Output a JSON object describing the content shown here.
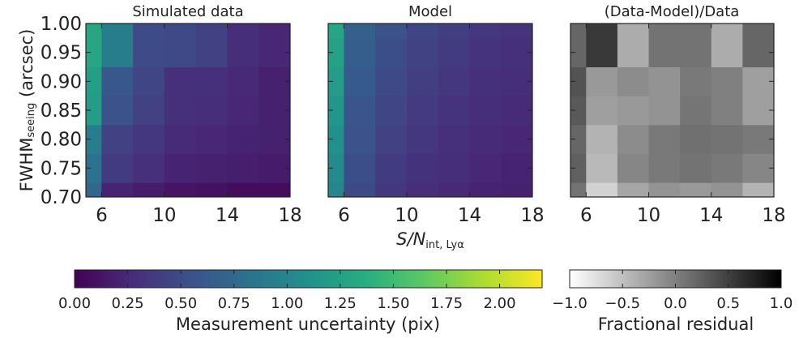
{
  "chart_data": [
    {
      "type": "heatmap",
      "title": "Simulated data",
      "xlabel": "S/N",
      "xlabel_sub": "int, Lyα",
      "ylabel": "FWHM",
      "ylabel_sub": "seeing",
      "ylabel_unit": "(arcsec)",
      "x_edges": [
        5,
        6,
        8,
        10,
        12,
        14,
        16,
        18
      ],
      "y_edges": [
        0.7,
        0.725,
        0.775,
        0.825,
        0.875,
        0.925,
        0.975,
        1.0
      ],
      "x_ticks": [
        6,
        10,
        14,
        18
      ],
      "y_ticks": [
        0.7,
        0.75,
        0.8,
        0.85,
        0.9,
        0.95,
        1.0
      ],
      "y_tick_labels": [
        "0.70",
        "0.75",
        "0.80",
        "0.85",
        "0.90",
        "0.95",
        "1.00"
      ],
      "xlim": [
        5,
        18
      ],
      "ylim": [
        0.7,
        1.0
      ],
      "colormap": "viridis",
      "vlim": [
        0,
        2.2
      ],
      "values": [
        [
          0.72,
          0.22,
          0.17,
          0.12,
          0.1,
          0.07,
          0.07
        ],
        [
          0.82,
          0.38,
          0.3,
          0.22,
          0.2,
          0.18,
          0.16
        ],
        [
          0.92,
          0.42,
          0.35,
          0.26,
          0.24,
          0.21,
          0.2
        ],
        [
          1.2,
          0.55,
          0.42,
          0.3,
          0.28,
          0.24,
          0.2
        ],
        [
          1.22,
          0.6,
          0.45,
          0.3,
          0.3,
          0.25,
          0.2
        ],
        [
          1.3,
          0.92,
          0.5,
          0.48,
          0.42,
          0.28,
          0.24
        ],
        [
          1.3,
          0.92,
          0.5,
          0.48,
          0.42,
          0.28,
          0.24
        ]
      ]
    },
    {
      "type": "heatmap",
      "title": "Model",
      "xlabel": "S/N",
      "xlabel_sub": "int, Lyα",
      "x_edges": [
        5,
        6,
        8,
        10,
        12,
        14,
        16,
        18
      ],
      "y_edges": [
        0.7,
        0.725,
        0.775,
        0.825,
        0.875,
        0.925,
        0.975,
        1.0
      ],
      "x_ticks": [
        6,
        10,
        14,
        18
      ],
      "xlim": [
        5,
        18
      ],
      "ylim": [
        0.7,
        1.0
      ],
      "colormap": "viridis",
      "vlim": [
        0,
        2.2
      ],
      "values": [
        [
          1.0,
          0.48,
          0.35,
          0.28,
          0.25,
          0.22,
          0.2
        ],
        [
          1.05,
          0.52,
          0.38,
          0.31,
          0.28,
          0.24,
          0.22
        ],
        [
          1.1,
          0.55,
          0.42,
          0.34,
          0.3,
          0.26,
          0.24
        ],
        [
          1.15,
          0.58,
          0.45,
          0.37,
          0.32,
          0.28,
          0.26
        ],
        [
          1.2,
          0.62,
          0.48,
          0.4,
          0.35,
          0.3,
          0.28
        ],
        [
          1.25,
          0.65,
          0.52,
          0.43,
          0.38,
          0.32,
          0.3
        ],
        [
          1.3,
          0.68,
          0.55,
          0.46,
          0.4,
          0.34,
          0.32
        ]
      ]
    },
    {
      "type": "heatmap",
      "title": "(Data-Model)/Data",
      "x_edges": [
        5,
        6,
        8,
        10,
        12,
        14,
        16,
        18
      ],
      "y_edges": [
        0.7,
        0.725,
        0.775,
        0.825,
        0.875,
        0.925,
        0.975,
        1.0
      ],
      "x_ticks": [
        6,
        10,
        14,
        18
      ],
      "xlim": [
        5,
        18
      ],
      "ylim": [
        0.7,
        1.0
      ],
      "colormap": "gray_r",
      "vlim": [
        -1.0,
        1.0
      ],
      "values": [
        [
          0.1,
          -0.65,
          -0.3,
          -0.15,
          -0.2,
          -0.15,
          -0.4
        ],
        [
          0.25,
          -0.45,
          -0.05,
          0.05,
          0.1,
          0.05,
          -0.05
        ],
        [
          0.2,
          -0.4,
          -0.1,
          0.05,
          0.12,
          0.1,
          0.05
        ],
        [
          0.3,
          -0.25,
          -0.2,
          -0.15,
          0.08,
          0.0,
          -0.25
        ],
        [
          0.35,
          -0.2,
          -0.1,
          -0.15,
          0.05,
          0.0,
          -0.25
        ],
        [
          0.2,
          0.55,
          -0.35,
          0.1,
          0.1,
          -0.35,
          0.2
        ],
        [
          0.2,
          0.55,
          -0.35,
          0.1,
          0.1,
          -0.35,
          0.2
        ]
      ]
    }
  ],
  "colorbars": [
    {
      "label": "Measurement uncertainty (pix)",
      "colormap": "viridis",
      "range": [
        0,
        2.2
      ],
      "ticks": [
        0,
        0.25,
        0.5,
        0.75,
        1.0,
        1.25,
        1.5,
        1.75,
        2.0
      ],
      "tick_labels": [
        "0.00",
        "0.25",
        "0.50",
        "0.75",
        "1.00",
        "1.25",
        "1.50",
        "1.75",
        "2.00"
      ]
    },
    {
      "label": "Fractional residual",
      "colormap": "gray_r",
      "range": [
        -1.0,
        1.0
      ],
      "ticks": [
        -1.0,
        -0.5,
        0.0,
        0.5,
        1.0
      ],
      "tick_labels": [
        "−1.0",
        "−0.5",
        "0.0",
        "0.5",
        "1.0"
      ]
    }
  ]
}
